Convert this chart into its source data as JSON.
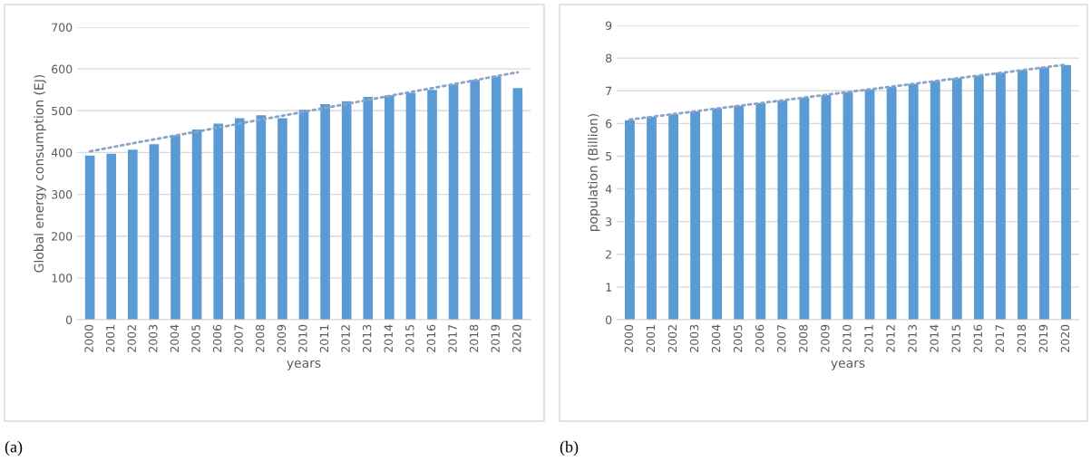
{
  "chart_data": [
    {
      "type": "bar",
      "xlabel": "years",
      "ylabel": "Global energy consumption (EJ)",
      "categories": [
        "2000",
        "2001",
        "2002",
        "2003",
        "2004",
        "2005",
        "2006",
        "2007",
        "2008",
        "2009",
        "2010",
        "2011",
        "2012",
        "2013",
        "2014",
        "2015",
        "2016",
        "2017",
        "2018",
        "2019",
        "2020"
      ],
      "series": [
        {
          "color": "#5b9bd5",
          "values": [
            393,
            397,
            407,
            420,
            441,
            455,
            469,
            482,
            489,
            482,
            502,
            516,
            523,
            533,
            537,
            543,
            550,
            563,
            574,
            582,
            554
          ]
        },
        {
          "type": "line",
          "color": "#8aa4c8",
          "line_style": "dotted",
          "values": [
            403,
            null,
            null,
            null,
            null,
            null,
            null,
            null,
            null,
            null,
            null,
            null,
            null,
            null,
            null,
            null,
            null,
            null,
            null,
            null,
            592
          ]
        }
      ],
      "ylim": [
        0,
        700
      ],
      "yticks": [
        0,
        100,
        200,
        300,
        400,
        500,
        600,
        700
      ],
      "grid": "y",
      "legend": false,
      "annotations": [
        "(a)"
      ]
    },
    {
      "type": "bar",
      "xlabel": "years",
      "ylabel": "population (Billion)",
      "categories": [
        "2000",
        "2001",
        "2002",
        "2003",
        "2004",
        "2005",
        "2006",
        "2007",
        "2008",
        "2009",
        "2010",
        "2011",
        "2012",
        "2013",
        "2014",
        "2015",
        "2016",
        "2017",
        "2018",
        "2019",
        "2020"
      ],
      "series": [
        {
          "color": "#5b9bd5",
          "values": [
            6.1,
            6.2,
            6.28,
            6.37,
            6.46,
            6.54,
            6.62,
            6.7,
            6.79,
            6.87,
            6.96,
            7.04,
            7.12,
            7.21,
            7.3,
            7.38,
            7.46,
            7.55,
            7.63,
            7.71,
            7.79
          ]
        },
        {
          "type": "line",
          "color": "#8aa4c8",
          "line_style": "dotted",
          "values": [
            6.12,
            null,
            null,
            null,
            null,
            null,
            null,
            null,
            null,
            null,
            null,
            null,
            null,
            null,
            null,
            null,
            null,
            null,
            null,
            null,
            7.8
          ]
        }
      ],
      "ylim": [
        0,
        9
      ],
      "yticks": [
        0,
        1,
        2,
        3,
        4,
        5,
        6,
        7,
        8,
        9
      ],
      "grid": "y",
      "legend": false,
      "annotations": [
        "(b)"
      ]
    }
  ]
}
